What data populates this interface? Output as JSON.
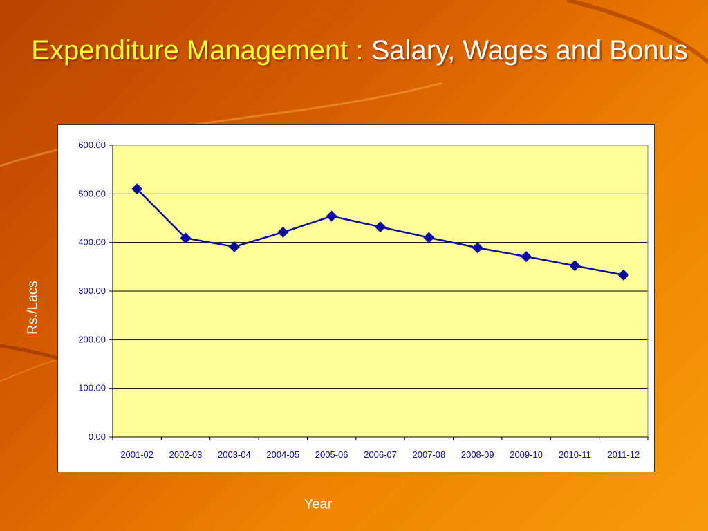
{
  "slide": {
    "title_main": "Expenditure Management :",
    "title_rest": " Salary, Wages and Bonus"
  },
  "colors": {
    "background": "#e06a00",
    "title_main": "#ffff33",
    "plot_area": "#ffff99",
    "series_line": "#0a0a9e",
    "tick_text": "#0a0a9e"
  },
  "chart_data": {
    "type": "line",
    "title": "",
    "xlabel": "Year",
    "ylabel": "Rs./Lacs",
    "categories": [
      "2001-02",
      "2002-03",
      "2003-04",
      "2004-05",
      "2005-06",
      "2006-07",
      "2007-08",
      "2008-09",
      "2009-10",
      "2010-11",
      "2011-12"
    ],
    "series": [
      {
        "values": [
          510,
          409,
          391,
          421,
          454,
          432,
          410,
          389,
          371,
          352,
          333
        ]
      }
    ],
    "ylim": [
      0,
      600
    ],
    "yticks": [
      "0.00",
      "100.00",
      "200.00",
      "300.00",
      "400.00",
      "500.00",
      "600.00"
    ],
    "grid": "horizontal",
    "marker": "diamond",
    "legend": "none"
  }
}
